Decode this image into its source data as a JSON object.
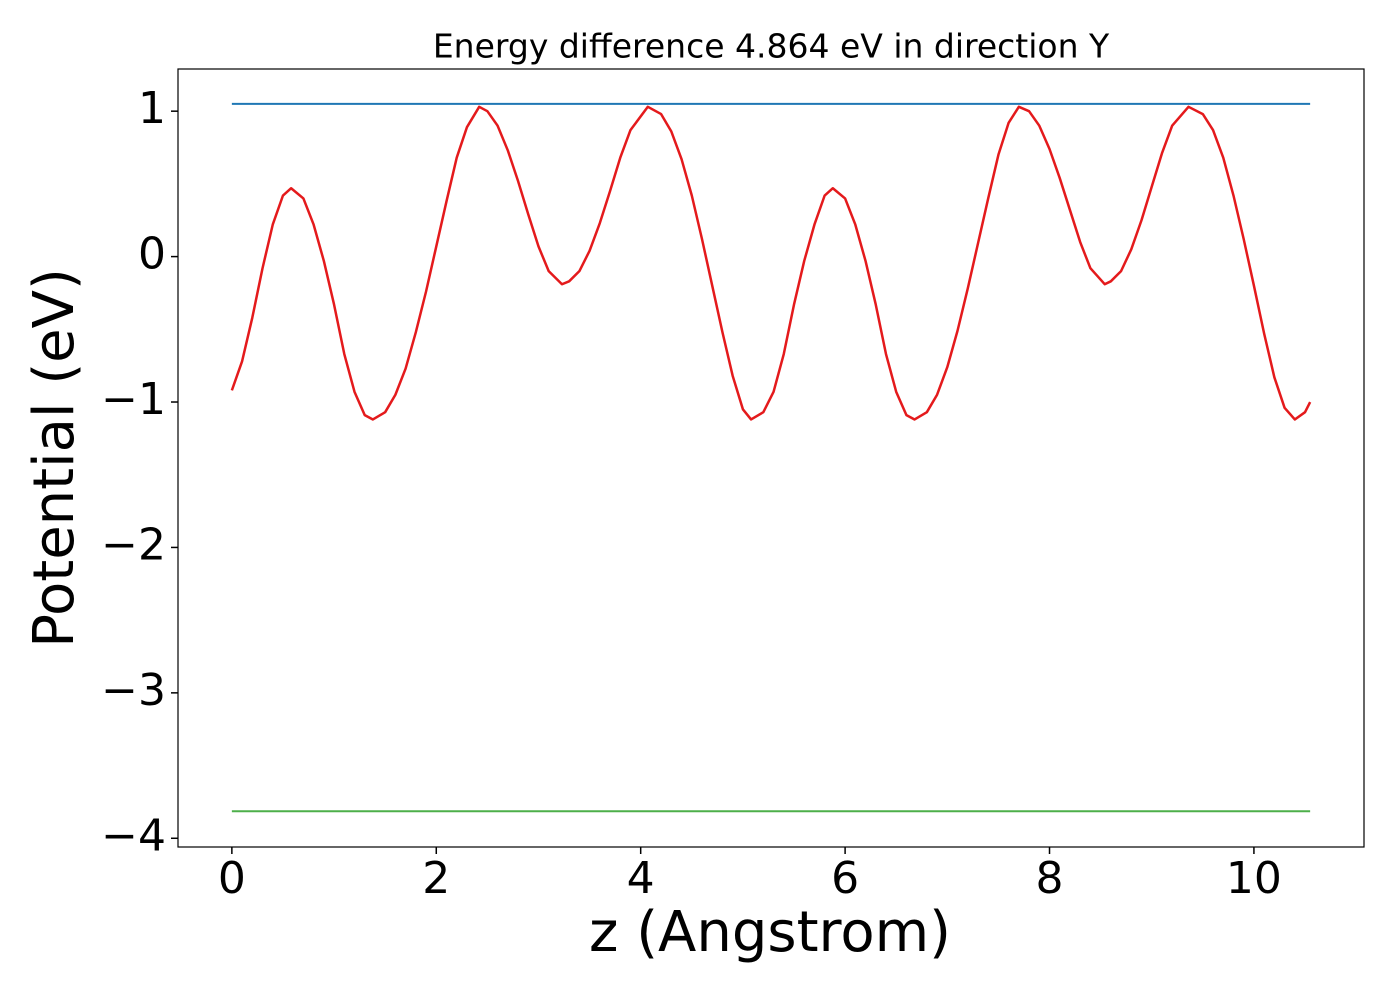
{
  "chart_data": {
    "type": "line",
    "title": "Energy difference 4.864 eV in direction Y",
    "xlabel": "z (Angstrom)",
    "ylabel": "Potential (eV)",
    "xlim": [
      -0.527,
      11.077
    ],
    "ylim": [
      -4.06,
      1.29
    ],
    "xticks": [
      0,
      2,
      4,
      6,
      8,
      10
    ],
    "yticks": [
      {
        "value": -4,
        "label": "−4"
      },
      {
        "value": -3,
        "label": "−3"
      },
      {
        "value": -2,
        "label": "−2"
      },
      {
        "value": -1,
        "label": "−1"
      },
      0,
      1
    ],
    "series": [
      {
        "color": "#e41a1c",
        "x": [
          0,
          0.1,
          0.2,
          0.3,
          0.4,
          0.5,
          0.58,
          0.7,
          0.8,
          0.9,
          1.0,
          1.1,
          1.2,
          1.3,
          1.38,
          1.5,
          1.6,
          1.7,
          1.8,
          1.9,
          2.0,
          2.1,
          2.2,
          2.3,
          2.42,
          2.5,
          2.6,
          2.7,
          2.8,
          2.9,
          3.0,
          3.1,
          3.23,
          3.3,
          3.4,
          3.5,
          3.6,
          3.7,
          3.8,
          3.9,
          4.07,
          4.2,
          4.3,
          4.4,
          4.5,
          4.6,
          4.7,
          4.8,
          4.9,
          5.0,
          5.08,
          5.2,
          5.3,
          5.4,
          5.5,
          5.6,
          5.7,
          5.8,
          5.88,
          6.0,
          6.1,
          6.2,
          6.3,
          6.4,
          6.5,
          6.6,
          6.68,
          6.8,
          6.9,
          7.0,
          7.1,
          7.2,
          7.3,
          7.4,
          7.5,
          7.6,
          7.7,
          7.8,
          7.9,
          8.0,
          8.1,
          8.2,
          8.3,
          8.4,
          8.54,
          8.6,
          8.7,
          8.8,
          8.9,
          9.0,
          9.1,
          9.2,
          9.36,
          9.5,
          9.6,
          9.7,
          9.8,
          9.9,
          10.0,
          10.1,
          10.2,
          10.3,
          10.4,
          10.5,
          10.55
        ],
        "values": [
          -0.92,
          -0.72,
          -0.42,
          -0.08,
          0.22,
          0.42,
          0.47,
          0.4,
          0.22,
          -0.03,
          -0.33,
          -0.67,
          -0.93,
          -1.09,
          -1.12,
          -1.07,
          -0.95,
          -0.77,
          -0.52,
          -0.24,
          0.07,
          0.38,
          0.68,
          0.89,
          1.03,
          1.0,
          0.9,
          0.73,
          0.52,
          0.29,
          0.07,
          -0.1,
          -0.19,
          -0.17,
          -0.1,
          0.04,
          0.23,
          0.45,
          0.68,
          0.87,
          1.03,
          0.98,
          0.86,
          0.67,
          0.42,
          0.12,
          -0.2,
          -0.52,
          -0.82,
          -1.05,
          -1.12,
          -1.07,
          -0.93,
          -0.67,
          -0.33,
          -0.03,
          0.22,
          0.42,
          0.47,
          0.4,
          0.22,
          -0.03,
          -0.33,
          -0.67,
          -0.93,
          -1.09,
          -1.12,
          -1.07,
          -0.95,
          -0.76,
          -0.51,
          -0.22,
          0.09,
          0.4,
          0.7,
          0.92,
          1.03,
          1.0,
          0.9,
          0.74,
          0.54,
          0.32,
          0.1,
          -0.08,
          -0.19,
          -0.17,
          -0.1,
          0.05,
          0.25,
          0.48,
          0.71,
          0.9,
          1.03,
          0.98,
          0.87,
          0.68,
          0.42,
          0.12,
          -0.2,
          -0.53,
          -0.83,
          -1.04,
          -1.12,
          -1.07,
          -1.0
        ]
      },
      {
        "color": "#1f77b4",
        "x": [
          0,
          10.55
        ],
        "values": [
          1.05,
          1.05
        ]
      },
      {
        "color": "#4daf4a",
        "x": [
          0,
          10.55
        ],
        "values": [
          -3.814,
          -3.814
        ]
      }
    ]
  }
}
